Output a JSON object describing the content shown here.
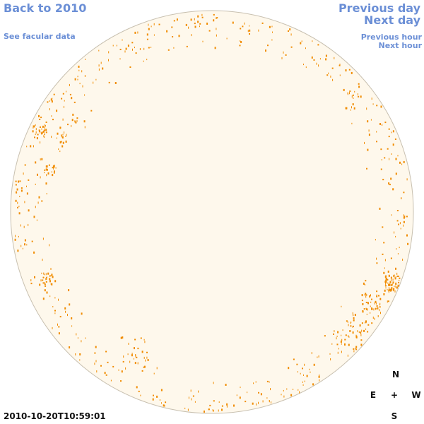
{
  "nav": {
    "back_label": "Back to 2010",
    "facular_label": "See facular data",
    "prev_day_label": "Previous day",
    "next_day_label": "Next day",
    "prev_hour_label": "Previous hour",
    "next_hour_label": "Next hour"
  },
  "observation": {
    "timestamp": "2010-10-20T10:59:01"
  },
  "compass": {
    "north": "N",
    "south": "S",
    "east": "E",
    "west": "W",
    "center": "+"
  },
  "colors": {
    "link": "#6b8fd6",
    "disk_fill": "#fef8ec",
    "disk_outline": "#c8c0b0",
    "feature": "#f08c00"
  }
}
